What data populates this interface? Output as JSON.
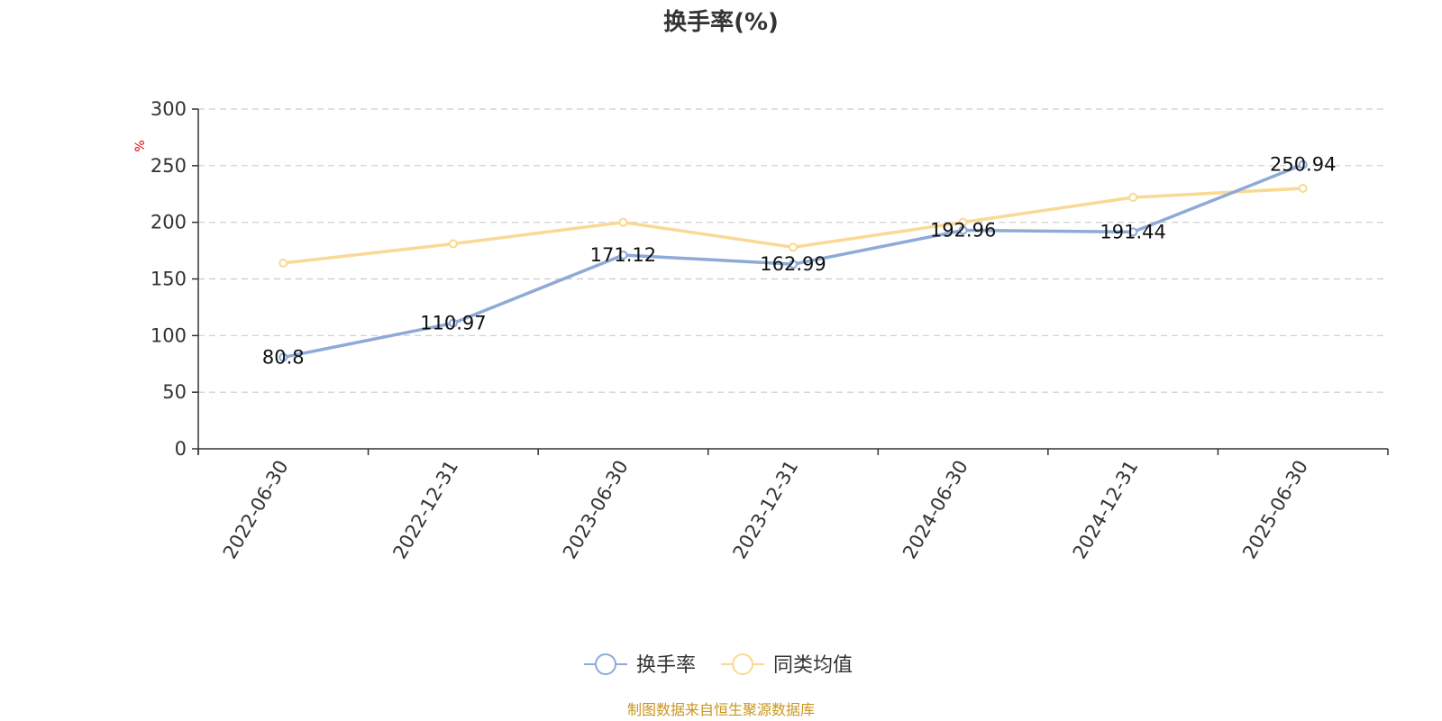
{
  "chart_data": {
    "type": "line",
    "title": "换手率(%)",
    "ylabel": "%",
    "xlabel": "",
    "categories": [
      "2022-06-30",
      "2022-12-31",
      "2023-06-30",
      "2023-12-31",
      "2024-06-30",
      "2024-12-31",
      "2025-06-30"
    ],
    "ylim": [
      0,
      300
    ],
    "yticks": [
      0,
      50,
      100,
      150,
      200,
      250,
      300
    ],
    "grid": true,
    "legend_position": "bottom-center",
    "series": [
      {
        "name": "换手率",
        "color": "#8eaad6",
        "values": [
          80.8,
          110.97,
          171.12,
          162.99,
          192.96,
          191.44,
          250.94
        ],
        "labels": [
          "80.8",
          "110.97",
          "171.12",
          "162.99",
          "192.96",
          "191.44",
          "250.94"
        ]
      },
      {
        "name": "同类均值",
        "color": "#f9d993",
        "values": [
          164,
          181,
          200,
          178,
          200,
          222,
          230
        ]
      }
    ],
    "source": "制图数据来自恒生聚源数据库"
  }
}
